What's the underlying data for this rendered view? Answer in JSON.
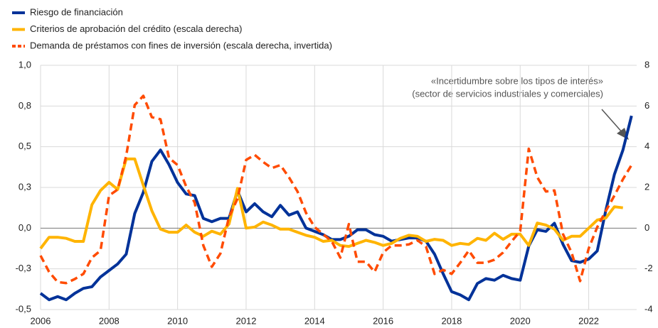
{
  "chart_data": {
    "type": "line",
    "x": [
      2006,
      2006.25,
      2006.5,
      2006.75,
      2007,
      2007.25,
      2007.5,
      2007.75,
      2008,
      2008.25,
      2008.5,
      2008.75,
      2009,
      2009.25,
      2009.5,
      2009.75,
      2010,
      2010.25,
      2010.5,
      2010.75,
      2011,
      2011.25,
      2011.5,
      2011.75,
      2012,
      2012.25,
      2012.5,
      2012.75,
      2013,
      2013.25,
      2013.5,
      2013.75,
      2014,
      2014.25,
      2014.5,
      2014.75,
      2015,
      2015.25,
      2015.5,
      2015.75,
      2016,
      2016.25,
      2016.5,
      2016.75,
      2017,
      2017.25,
      2017.5,
      2017.75,
      2018,
      2018.25,
      2018.5,
      2018.75,
      2019,
      2019.25,
      2019.5,
      2019.75,
      2020,
      2020.25,
      2020.5,
      2020.75,
      2021,
      2021.25,
      2021.5,
      2021.75,
      2022,
      2022.25,
      2022.5,
      2022.75,
      2023,
      2023.25
    ],
    "series": [
      {
        "name": "Riesgo de financiación",
        "color": "#003299",
        "axis": "y",
        "values": [
          -0.4,
          -0.44,
          -0.42,
          -0.44,
          -0.4,
          -0.37,
          -0.36,
          -0.3,
          -0.26,
          -0.22,
          -0.16,
          0.09,
          0.22,
          0.41,
          0.48,
          0.39,
          0.28,
          0.21,
          0.2,
          0.06,
          0.04,
          0.06,
          0.06,
          0.23,
          0.1,
          0.15,
          0.1,
          0.07,
          0.14,
          0.08,
          0.1,
          0.0,
          -0.02,
          -0.04,
          -0.07,
          -0.07,
          -0.05,
          -0.01,
          -0.01,
          -0.04,
          -0.05,
          -0.08,
          -0.07,
          -0.06,
          -0.06,
          -0.08,
          -0.16,
          -0.28,
          -0.39,
          -0.41,
          -0.44,
          -0.34,
          -0.31,
          -0.32,
          -0.29,
          -0.31,
          -0.32,
          -0.11,
          -0.01,
          -0.02,
          0.03,
          -0.1,
          -0.2,
          -0.21,
          -0.19,
          -0.14,
          0.11,
          0.33,
          0.48,
          0.69
        ]
      },
      {
        "name": "Criterios de aprobación del crédito (escala derecha)",
        "color": "#ffb400",
        "axis": "y2",
        "values": [
          -1.0,
          -0.45,
          -0.45,
          -0.5,
          -0.65,
          -0.65,
          1.15,
          1.85,
          2.25,
          1.9,
          3.4,
          3.4,
          2.1,
          0.85,
          -0.05,
          -0.2,
          -0.2,
          0.15,
          -0.2,
          -0.4,
          -0.15,
          -0.3,
          0.2,
          1.95,
          0,
          0.05,
          0.3,
          0.15,
          -0.05,
          -0.05,
          -0.2,
          -0.35,
          -0.45,
          -0.65,
          -0.6,
          -0.85,
          -0.9,
          -0.75,
          -0.6,
          -0.7,
          -0.85,
          -0.75,
          -0.5,
          -0.35,
          -0.4,
          -0.65,
          -0.55,
          -0.6,
          -0.85,
          -0.75,
          -0.8,
          -0.5,
          -0.6,
          -0.25,
          -0.55,
          -0.3,
          -0.3,
          -0.85,
          0.25,
          0.15,
          -0.05,
          -0.6,
          -0.4,
          -0.4,
          0,
          0.4,
          0.5,
          1.05,
          1.0,
          null
        ]
      },
      {
        "name": "Demanda de préstamos con fines de inversión (escala derecha, invertida)",
        "color": "#ff4b00",
        "axis": "y2",
        "dash": true,
        "values": [
          -1.35,
          -2.15,
          -2.65,
          -2.7,
          -2.5,
          -2.25,
          -1.45,
          -1.1,
          1.6,
          1.9,
          3.55,
          6.05,
          6.5,
          5.45,
          5.35,
          3.45,
          3.1,
          2.05,
          1.25,
          -0.85,
          -1.9,
          -1.25,
          0.55,
          1.45,
          3.35,
          3.6,
          3.25,
          2.95,
          3.1,
          2.5,
          1.8,
          0.75,
          0.05,
          -0.3,
          -0.65,
          -1.45,
          0.2,
          -1.65,
          -1.65,
          -2.15,
          -1.2,
          -0.85,
          -0.85,
          -0.8,
          -0.6,
          -0.9,
          -2.25,
          -2.05,
          -2.25,
          -1.7,
          -1.1,
          -1.7,
          -1.7,
          -1.55,
          -1.2,
          -0.65,
          -0.15,
          3.9,
          2.5,
          1.8,
          1.85,
          -0.3,
          -1.2,
          -2.6,
          -1.0,
          0.05,
          0.85,
          1.6,
          2.4,
          3.1
        ]
      }
    ],
    "xlim": [
      2006,
      2023.4
    ],
    "xticks": [
      2006,
      2008,
      2010,
      2012,
      2014,
      2016,
      2018,
      2020,
      2022
    ],
    "ylim": [
      -0.5,
      1.0
    ],
    "yticks": [
      {
        "value": -0.5,
        "label": "-0,5"
      },
      {
        "value": -0.25,
        "label": "-0,3"
      },
      {
        "value": 0,
        "label": "0,0"
      },
      {
        "value": 0.25,
        "label": "0,3"
      },
      {
        "value": 0.5,
        "label": "0,5"
      },
      {
        "value": 0.75,
        "label": "0,8"
      },
      {
        "value": 1.0,
        "label": "1,0"
      }
    ],
    "y2lim": [
      -4,
      8
    ],
    "y2ticks": [
      -4,
      -2,
      0,
      2,
      4,
      6,
      8
    ],
    "grid": true,
    "annotation": [
      "«Incertidumbre sobre los tipos de interés»",
      "(sector de servicios industriales y comerciales)"
    ]
  }
}
